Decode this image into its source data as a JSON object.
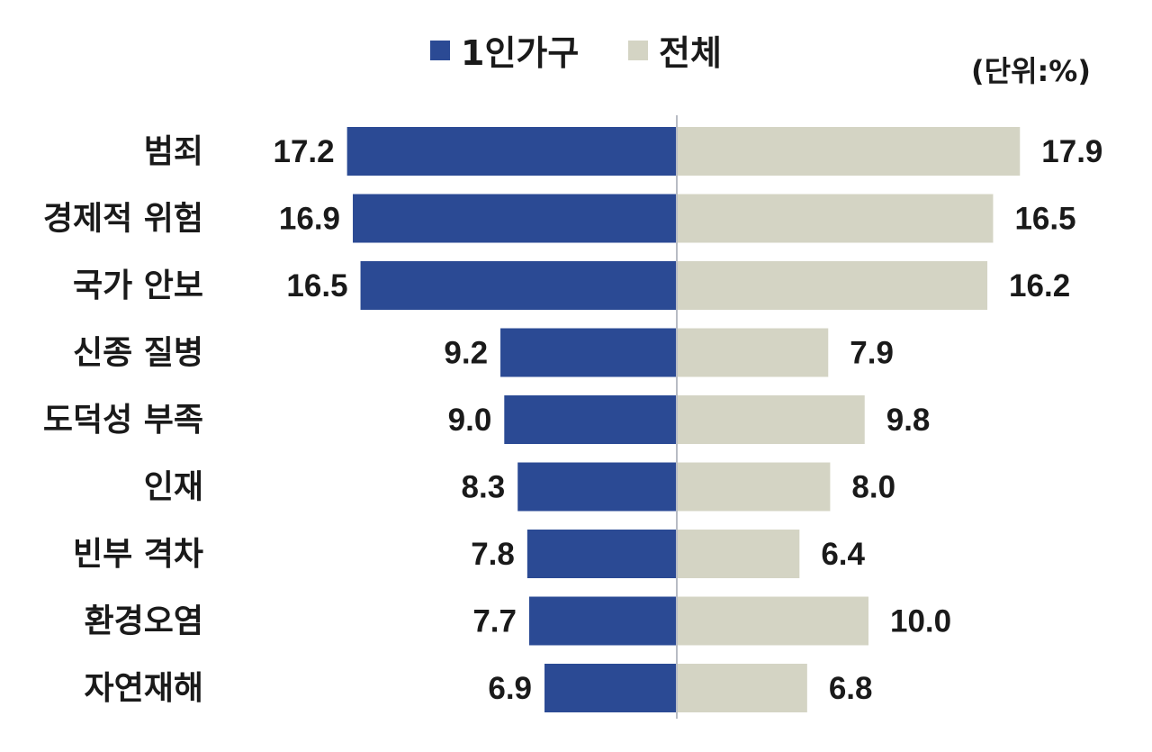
{
  "unit_label": "(단위:%)",
  "colors": {
    "single_household": "#2B4A94",
    "total": "#D4D4C4",
    "axis": "#B8BCC4"
  },
  "chart_data": {
    "type": "bar",
    "orientation": "horizontal-butterfly",
    "categories": [
      "범죄",
      "경제적 위험",
      "국가 안보",
      "신종 질병",
      "도덕성 부족",
      "인재",
      "빈부 격차",
      "환경오염",
      "자연재해"
    ],
    "series": [
      {
        "name": "1인가구",
        "values": [
          17.2,
          16.9,
          16.5,
          9.2,
          9.0,
          8.3,
          7.8,
          7.7,
          6.9
        ]
      },
      {
        "name": "전체",
        "values": [
          17.9,
          16.5,
          16.2,
          7.9,
          9.8,
          8.0,
          6.4,
          10.0,
          6.8
        ]
      }
    ],
    "value_labels": [
      [
        "17.2",
        "16.9",
        "16.5",
        "9.2",
        "9.0",
        "8.3",
        "7.8",
        "7.7",
        "6.9"
      ],
      [
        "17.9",
        "16.5",
        "16.2",
        "7.9",
        "9.8",
        "8.0",
        "6.4",
        "10.0",
        "6.8"
      ]
    ],
    "legend_position": "top",
    "grid": false
  }
}
